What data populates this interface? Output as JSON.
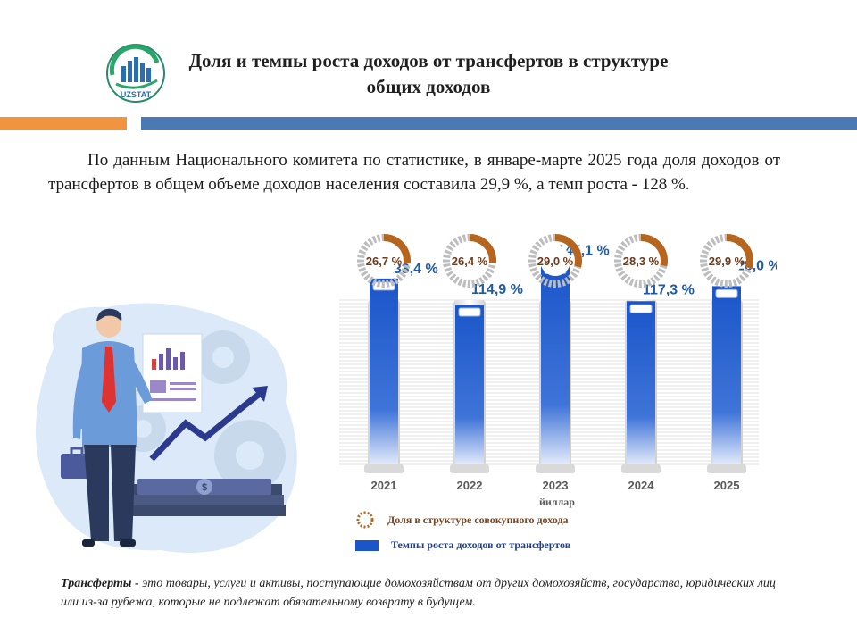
{
  "header": {
    "logo_text": "UZSTAT",
    "title": "Доля и темпы роста доходов от трансфертов в структуре общих доходов"
  },
  "intro_text": "По данным Национального комитета по статистике, в январе-марте 2025 года доля доходов от трансфертов в общем объеме доходов населения составила 29,9 %, а темп роста - 128 %.",
  "chart_data": {
    "type": "bar",
    "categories": [
      "2021",
      "2022",
      "2023",
      "2024",
      "2025"
    ],
    "xlabel": "йиллар",
    "ylim": [
      0,
      160
    ],
    "series": [
      {
        "name": "Темпы роста доходов от трансфертов",
        "values": [
          133.4,
          114.9,
          145.1,
          117.3,
          128.0
        ],
        "labels": [
          "133,4 %",
          "114,9 %",
          "145,1 %",
          "117,3 %",
          "128,0 %"
        ],
        "color": "#1a55c9"
      },
      {
        "name": "Доля в структуре совокупного дохода",
        "values": [
          26.7,
          26.4,
          29.0,
          28.3,
          29.9
        ],
        "labels": [
          "26,7 %",
          "26,4 %",
          "29,0 %",
          "28,3 %",
          "29,9 %"
        ],
        "color": "#b5651d"
      }
    ],
    "legend": [
      {
        "label": "Доля в структуре совокупного дохода",
        "marker": "ring"
      },
      {
        "label": "Темпы роста доходов от трансфертов",
        "marker": "bar"
      }
    ],
    "grid": true
  },
  "footnote": {
    "term": "Трансферты -",
    "text": " это товары, услуги и активы, поступающие домохозяйствам от других домохозяйств, государства, юридических лиц или из-за рубежа, которые не подлежат обязательному возврату в будущем."
  },
  "colors": {
    "accent_orange": "#f0943f",
    "accent_blue": "#4a79b4",
    "bar_blue": "#1a55c9",
    "ring_brown": "#b5651d",
    "label_blue": "#1f5aa6"
  }
}
